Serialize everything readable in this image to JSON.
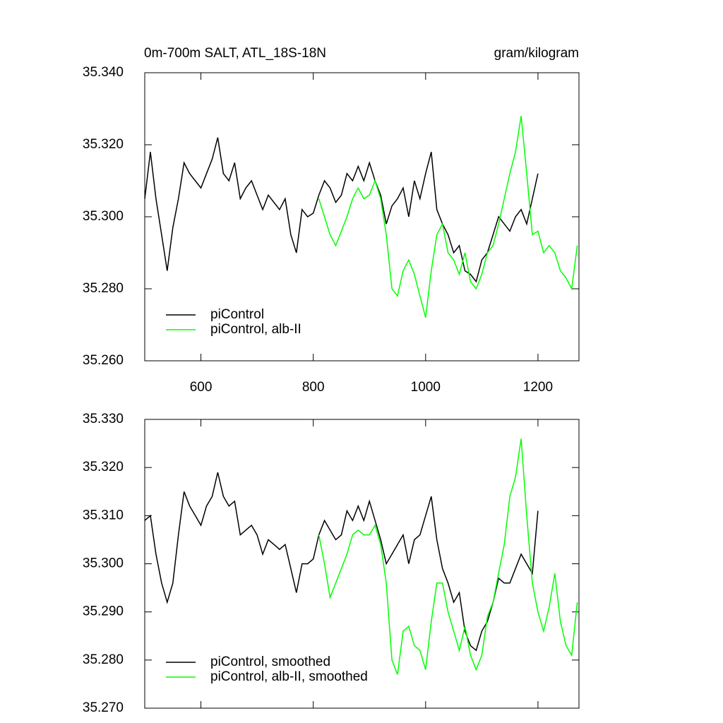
{
  "chart_data": [
    {
      "type": "line",
      "title": "0m-700m SALT, ATL_18S-18N",
      "subtitle": "gram/kilogram",
      "xlim": [
        500,
        1273
      ],
      "xticks": [
        600,
        800,
        1000,
        1200
      ],
      "ylim": [
        35.26,
        35.34
      ],
      "yticks": [
        {
          "value": 35.26,
          "label": "35.260"
        },
        {
          "value": 35.28,
          "label": "35.280"
        },
        {
          "value": 35.3,
          "label": "35.300"
        },
        {
          "value": 35.32,
          "label": "35.320"
        },
        {
          "value": 35.34,
          "label": "35.340"
        }
      ],
      "legend": "lower left",
      "series": [
        {
          "name": "piControl",
          "color": "#000000",
          "x": [
            500,
            510,
            520,
            530,
            540,
            550,
            560,
            570,
            580,
            590,
            600,
            610,
            620,
            630,
            640,
            650,
            660,
            670,
            680,
            690,
            700,
            710,
            720,
            730,
            740,
            750,
            760,
            770,
            780,
            790,
            800,
            810,
            820,
            830,
            840,
            850,
            860,
            870,
            880,
            890,
            900,
            910,
            920,
            930,
            940,
            950,
            960,
            970,
            980,
            990,
            1000,
            1010,
            1020,
            1030,
            1040,
            1050,
            1060,
            1070,
            1080,
            1090,
            1100,
            1110,
            1120,
            1130,
            1140,
            1150,
            1160,
            1170,
            1180,
            1190,
            1200
          ],
          "values": [
            35.305,
            35.318,
            35.305,
            35.295,
            35.285,
            35.297,
            35.305,
            35.315,
            35.312,
            35.31,
            35.308,
            35.312,
            35.316,
            35.322,
            35.312,
            35.31,
            35.315,
            35.305,
            35.308,
            35.31,
            35.306,
            35.302,
            35.306,
            35.304,
            35.302,
            35.305,
            35.295,
            35.29,
            35.302,
            35.3,
            35.301,
            35.306,
            35.31,
            35.308,
            35.304,
            35.306,
            35.312,
            35.31,
            35.314,
            35.31,
            35.315,
            35.31,
            35.306,
            35.298,
            35.303,
            35.305,
            35.308,
            35.3,
            35.31,
            35.305,
            35.312,
            35.318,
            35.302,
            35.298,
            35.295,
            35.29,
            35.292,
            35.285,
            35.284,
            35.282,
            35.288,
            35.29,
            35.295,
            35.3,
            35.298,
            35.296,
            35.3,
            35.302,
            35.298,
            35.305,
            35.312
          ]
        },
        {
          "name": "piControl, alb-II",
          "color": "#00ff00",
          "x": [
            810,
            820,
            830,
            840,
            850,
            860,
            870,
            880,
            890,
            900,
            910,
            920,
            930,
            940,
            950,
            960,
            970,
            980,
            990,
            1000,
            1010,
            1020,
            1030,
            1040,
            1050,
            1060,
            1070,
            1080,
            1090,
            1100,
            1110,
            1120,
            1130,
            1140,
            1150,
            1160,
            1170,
            1180,
            1190,
            1200,
            1210,
            1220,
            1230,
            1240,
            1250,
            1260,
            1270
          ],
          "values": [
            35.305,
            35.3,
            35.295,
            35.292,
            35.296,
            35.3,
            35.305,
            35.308,
            35.305,
            35.306,
            35.31,
            35.305,
            35.295,
            35.28,
            35.278,
            35.285,
            35.288,
            35.284,
            35.278,
            35.272,
            35.285,
            35.295,
            35.298,
            35.29,
            35.288,
            35.284,
            35.29,
            35.282,
            35.28,
            35.284,
            35.29,
            35.292,
            35.298,
            35.305,
            35.312,
            35.318,
            35.328,
            35.312,
            35.295,
            35.296,
            35.29,
            35.292,
            35.29,
            35.285,
            35.283,
            35.28,
            35.292
          ]
        }
      ]
    },
    {
      "type": "line",
      "xlim": [
        500,
        1273
      ],
      "ylim": [
        35.27,
        35.33
      ],
      "yticks": [
        {
          "value": 35.27,
          "label": "35.270"
        },
        {
          "value": 35.28,
          "label": "35.280"
        },
        {
          "value": 35.29,
          "label": "35.290"
        },
        {
          "value": 35.3,
          "label": "35.300"
        },
        {
          "value": 35.31,
          "label": "35.310"
        },
        {
          "value": 35.32,
          "label": "35.320"
        },
        {
          "value": 35.33,
          "label": "35.330"
        }
      ],
      "legend": "lower left",
      "series": [
        {
          "name": "piControl, smoothed",
          "color": "#000000",
          "x": [
            500,
            510,
            520,
            530,
            540,
            550,
            560,
            570,
            580,
            590,
            600,
            610,
            620,
            630,
            640,
            650,
            660,
            670,
            680,
            690,
            700,
            710,
            720,
            730,
            740,
            750,
            760,
            770,
            780,
            790,
            800,
            810,
            820,
            830,
            840,
            850,
            860,
            870,
            880,
            890,
            900,
            910,
            920,
            930,
            940,
            950,
            960,
            970,
            980,
            990,
            1000,
            1010,
            1020,
            1030,
            1040,
            1050,
            1060,
            1070,
            1080,
            1090,
            1100,
            1110,
            1120,
            1130,
            1140,
            1150,
            1160,
            1170,
            1180,
            1190,
            1200
          ],
          "values": [
            35.309,
            35.31,
            35.302,
            35.296,
            35.292,
            35.296,
            35.306,
            35.315,
            35.312,
            35.31,
            35.308,
            35.312,
            35.314,
            35.319,
            35.314,
            35.312,
            35.313,
            35.306,
            35.307,
            35.308,
            35.306,
            35.302,
            35.305,
            35.304,
            35.303,
            35.304,
            35.299,
            35.294,
            35.3,
            35.3,
            35.301,
            35.306,
            35.309,
            35.307,
            35.305,
            35.306,
            35.311,
            35.309,
            35.312,
            35.309,
            35.313,
            35.309,
            35.305,
            35.3,
            35.302,
            35.304,
            35.306,
            35.3,
            35.305,
            35.306,
            35.31,
            35.314,
            35.305,
            35.299,
            35.296,
            35.292,
            35.294,
            35.286,
            35.283,
            35.282,
            35.286,
            35.288,
            35.292,
            35.297,
            35.296,
            35.296,
            35.299,
            35.302,
            35.3,
            35.298,
            35.311
          ]
        },
        {
          "name": "piControl, alb-II, smoothed",
          "color": "#00ff00",
          "x": [
            810,
            820,
            830,
            840,
            850,
            860,
            870,
            880,
            890,
            900,
            910,
            920,
            930,
            940,
            950,
            960,
            970,
            980,
            990,
            1000,
            1010,
            1020,
            1030,
            1040,
            1050,
            1060,
            1070,
            1080,
            1090,
            1100,
            1110,
            1120,
            1130,
            1140,
            1150,
            1160,
            1170,
            1180,
            1190,
            1200,
            1210,
            1220,
            1230,
            1240,
            1250,
            1260,
            1270
          ],
          "values": [
            35.306,
            35.3,
            35.293,
            35.296,
            35.299,
            35.302,
            35.306,
            35.307,
            35.306,
            35.306,
            35.308,
            35.304,
            35.296,
            35.28,
            35.277,
            35.286,
            35.287,
            35.283,
            35.282,
            35.278,
            35.288,
            35.296,
            35.296,
            35.29,
            35.286,
            35.282,
            35.287,
            35.281,
            35.278,
            35.281,
            35.289,
            35.292,
            35.298,
            35.304,
            35.314,
            35.318,
            35.326,
            35.31,
            35.296,
            35.29,
            35.286,
            35.291,
            35.298,
            35.288,
            35.283,
            35.281,
            35.292
          ]
        }
      ]
    }
  ]
}
